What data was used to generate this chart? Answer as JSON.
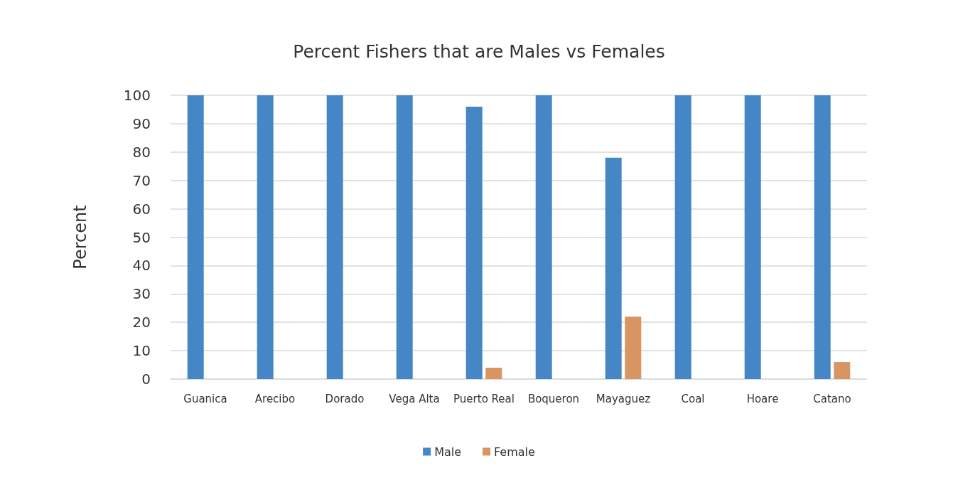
{
  "chart_data": {
    "type": "bar",
    "title": "Percent Fishers that are Males vs Females",
    "ylabel": "Percent",
    "categories": [
      "Guanica",
      "Arecibo",
      "Dorado",
      "Vega Alta",
      "Puerto Real",
      "Boqueron",
      "Mayaguez",
      "Coal",
      "Hoare",
      "Catano"
    ],
    "series": [
      {
        "name": "Male",
        "color": "#4586c6",
        "values": [
          100,
          100,
          100,
          100,
          96,
          100,
          78,
          100,
          100,
          100
        ]
      },
      {
        "name": "Female",
        "color": "#d99561",
        "values": [
          0,
          0,
          0,
          0,
          4,
          0,
          22,
          0,
          0,
          6
        ]
      }
    ],
    "ylim": [
      0,
      100
    ],
    "yticks": [
      0,
      10,
      20,
      30,
      40,
      50,
      60,
      70,
      80,
      90,
      100
    ],
    "grid": "y",
    "legend": "bottom"
  }
}
